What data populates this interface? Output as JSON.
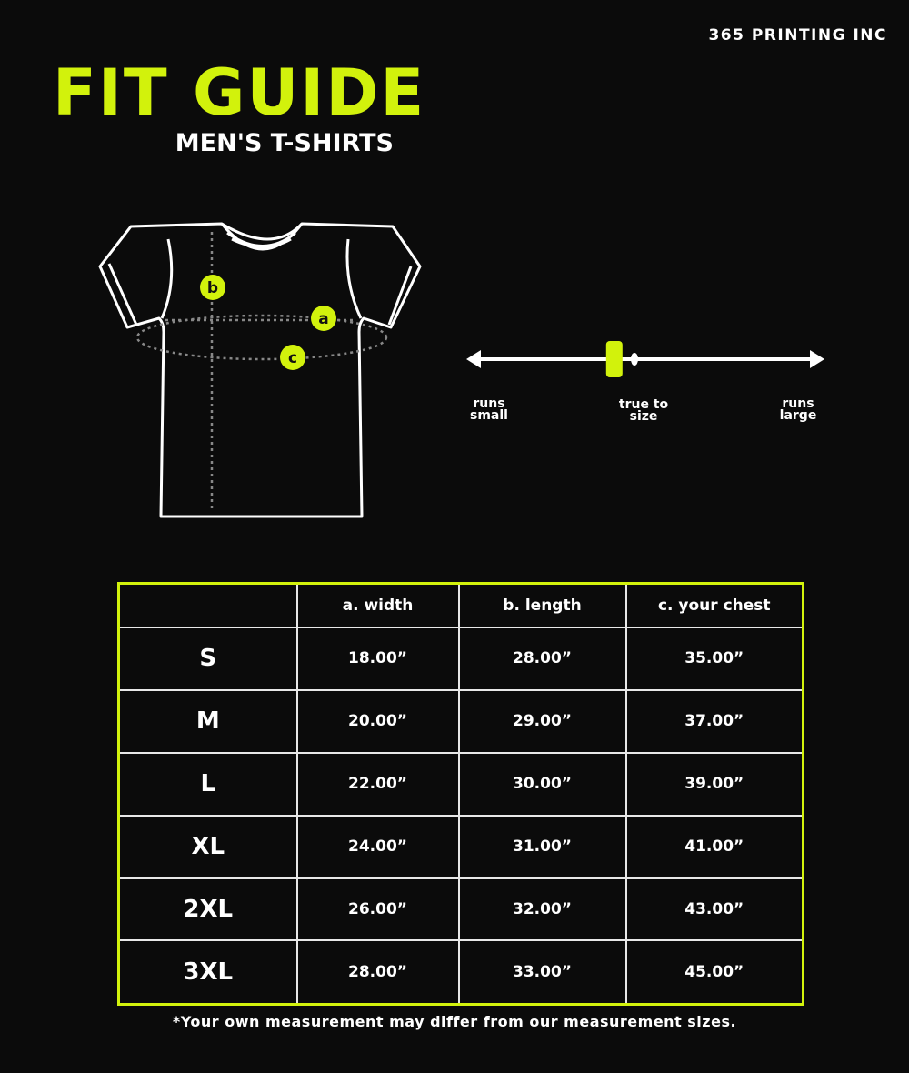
{
  "brand": "365 PRINTING INC",
  "title": "FIT GUIDE",
  "subtitle": "MEN'S T-SHIRTS",
  "diagram": {
    "markers": [
      "a",
      "b",
      "c"
    ]
  },
  "fit_scale": {
    "labels": [
      "runs small",
      "true to size",
      "runs large"
    ],
    "left": [
      "runs",
      "small"
    ],
    "mid": [
      "true to",
      "size"
    ],
    "right": [
      "runs",
      "large"
    ],
    "position": 0.41
  },
  "colors": {
    "accent": "#d2f20c",
    "background": "#0b0b0b"
  },
  "table": {
    "headers": [
      "",
      "a. width",
      "b. length",
      "c. your chest"
    ],
    "rows": [
      [
        "S",
        "18.00”",
        "28.00”",
        "35.00”"
      ],
      [
        "M",
        "20.00”",
        "29.00”",
        "37.00”"
      ],
      [
        "L",
        "22.00”",
        "30.00”",
        "39.00”"
      ],
      [
        "XL",
        "24.00”",
        "31.00”",
        "41.00”"
      ],
      [
        "2XL",
        "26.00”",
        "32.00”",
        "43.00”"
      ],
      [
        "3XL",
        "28.00”",
        "33.00”",
        "45.00”"
      ]
    ]
  },
  "note": "*Your own measurement may differ from our measurement sizes."
}
